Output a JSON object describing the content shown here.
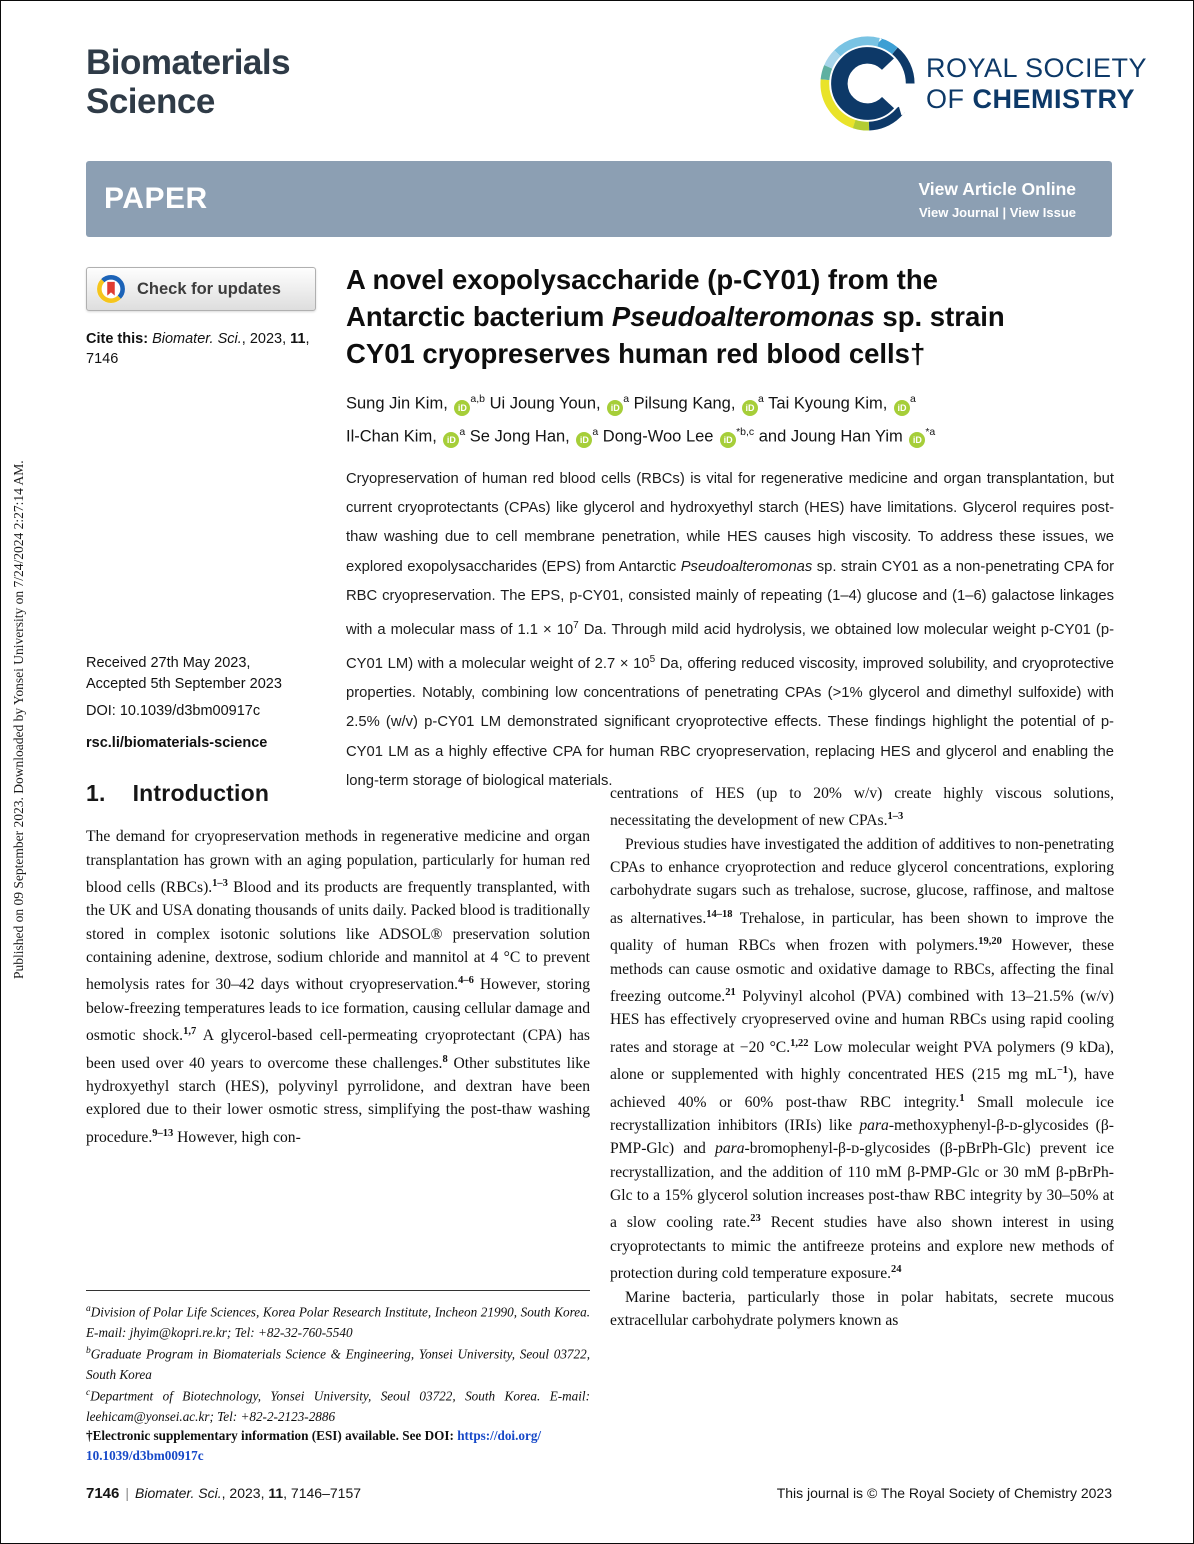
{
  "theme": {
    "banner_bg": "#8C9FB3",
    "journal_navy": "#2F3B47",
    "rsc_navy": "#0D3968",
    "orcid_green": "#A6CE39",
    "link_blue": "#1648C8",
    "crossmark_red": "#E03C31",
    "crossmark_yellow": "#F5C51D",
    "crossmark_blue": "#1C63B7"
  },
  "icons": {
    "rsc_logo": "c-swoosh-icon",
    "crossmark": "bookmark-circle-icon",
    "orcid": "iD"
  },
  "side_note": "Published on 09 September 2023. Downloaded by Yonsei University on 7/24/2024 2:27:14 AM.",
  "header": {
    "journal_html": "Biomaterials<br>Science",
    "logo_line1": "ROYAL SOCIETY",
    "logo_line2_html": "OF <span class='bold'>CHEMISTRY</span>"
  },
  "banner": {
    "kind": "PAPER",
    "view_article": "View Article Online",
    "view_links": "View Journal | View Issue"
  },
  "meta": {
    "check_updates": "Check for updates",
    "cite_html": "<b>Cite this:</b> <i>Biomater. Sci.</i>, 2023, <b>11</b>,<br>7146",
    "received_html": "Received 27th May 2023,<br>Accepted 5th September 2023",
    "doi": "DOI: 10.1039/d3bm00917c",
    "rsc_link": "rsc.li/biomaterials-science"
  },
  "article": {
    "title_html": "A novel exopolysaccharide (p-CY01) from the<br>Antarctic bacterium <i>Pseudoalteromonas</i> sp. strain<br>CY01 cryopreserves human red blood cells&dagger;",
    "authors_html": "Sung Jin Kim, <span class='orcid' data-name='orcid-icon' data-interactable='true'>iD</span><sup>a,b</sup> Ui Joung Youn, <span class='orcid' data-name='orcid-icon' data-interactable='true'>iD</span><sup>a</sup> Pilsung Kang, <span class='orcid' data-name='orcid-icon' data-interactable='true'>iD</span><sup>a</sup> Tai Kyoung Kim, <span class='orcid' data-name='orcid-icon' data-interactable='true'>iD</span><sup>a</sup><br>Il-Chan Kim, <span class='orcid' data-name='orcid-icon' data-interactable='true'>iD</span><sup>a</sup> Se Jong Han, <span class='orcid' data-name='orcid-icon' data-interactable='true'>iD</span><sup>a</sup> Dong-Woo Lee <span class='orcid' data-name='orcid-icon' data-interactable='true'>iD</span><sup>*b,c</sup> and Joung Han Yim <span class='orcid' data-name='orcid-icon' data-interactable='true'>iD</span><sup>*a</sup>",
    "abstract_html": "Cryopreservation of human red blood cells (RBCs) is vital for regenerative medicine and organ transplantation, but current cryoprotectants (CPAs) like glycerol and hydroxyethyl starch (HES) have limitations. Glycerol requires post-thaw washing due to cell membrane penetration, while HES causes high viscosity. To address these issues, we explored exopolysaccharides (EPS) from Antarctic <i>Pseudoalteromonas</i> sp. strain CY01 as a non-penetrating CPA for RBC cryopreservation. The EPS, p-CY01, consisted mainly of repeating (1–4) glucose and (1–6) galactose linkages with a molecular mass of 1.1 × 10<sup>7</sup> Da. Through mild acid hydrolysis, we obtained low molecular weight p-CY01 (p-CY01 LM) with a molecular weight of 2.7 × 10<sup>5</sup> Da, offering reduced viscosity, improved solubility, and cryoprotective properties. Notably, combining low concentrations of penetrating CPAs (&gt;1% glycerol and dimethyl sulfoxide) with 2.5% (w/v) p-CY01 LM demonstrated significant cryoprotective effects. These findings highlight the potential of p-CY01 LM as a highly effective CPA for human RBC cryopreservation, replacing HES and glycerol and enabling the long-term storage of biological materials."
  },
  "intro": {
    "number": "1.",
    "title": "Introduction",
    "col1_par_html": "The demand for cryopreservation methods in regenerative medicine and organ transplantation has grown with an aging population, particularly for human red blood cells (RBCs).<sup>1–3</sup> Blood and its products are frequently transplanted, with the UK and USA donating thousands of units daily. Packed blood is traditionally stored in complex isotonic solutions like ADSOL® preservation solution containing adenine, dextrose, sodium chloride and mannitol at 4 °C to prevent hemolysis rates for 30–42 days without cryopreservation.<sup>4–6</sup> However, storing below-freezing temperatures leads to ice formation, causing cellular damage and osmotic shock.<sup>1,7</sup> A glycerol-based cell-permeating cryoprotectant (CPA) has been used over 40 years to overcome these challenges.<sup>8</sup> Other substitutes like hydroxyethyl starch (HES), polyvinyl pyrrolidone, and dextran have been explored due to their lower osmotic stress, simplifying the post-thaw washing procedure.<sup>9–13</sup> However, high con-",
    "col2_paragraphs_html": [
      "centrations of HES (up to 20% w/v) create highly viscous solutions, necessitating the development of new CPAs.<sup>1–3</sup>",
      "Previous studies have investigated the addition of additives to non-penetrating CPAs to enhance cryoprotection and reduce glycerol concentrations, exploring carbohydrate sugars such as trehalose, sucrose, glucose, raffinose, and maltose as alternatives.<sup>14–18</sup> Trehalose, in particular, has been shown to improve the quality of human RBCs when frozen with polymers.<sup>19,20</sup> However, these methods can cause osmotic and oxidative damage to RBCs, affecting the final freezing outcome.<sup>21</sup> Polyvinyl alcohol (PVA) combined with 13–21.5% (w/v) HES has effectively cryopreserved ovine and human RBCs using rapid cooling rates and storage at −20 °C.<sup>1,22</sup> Low molecular weight PVA polymers (9 kDa), alone or supplemented with highly concentrated HES (215 mg mL<sup>−1</sup>), have achieved 40% or 60% post-thaw RBC integrity.<sup>1</sup> Small molecule ice recrystallization inhibitors (IRIs) like <i>para</i>-methoxyphenyl-β-ᴅ-glycosides (β-PMP-Glc) and <i>para</i>-bromophenyl-β-ᴅ-glycosides (β-pBrPh-Glc) prevent ice recrystallization, and the addition of 110 mM β-PMP-Glc or 30 mM β-pBrPh-Glc to a 15% glycerol solution increases post-thaw RBC integrity by 30–50% at a slow cooling rate.<sup>23</sup> Recent studies have also shown interest in using cryoprotectants to mimic the antifreeze proteins and explore new methods of protection during cold temperature exposure.<sup>24</sup>",
      "Marine bacteria, particularly those in polar habitats, secrete mucous extracellular carbohydrate polymers known as"
    ]
  },
  "footnotes_html": [
    "<sup>a</sup>Division of Polar Life Sciences, Korea Polar Research Institute, Incheon 21990, South Korea. E-mail: jhyim@kopri.re.kr; Tel: +82-32-760-5540",
    "<sup>b</sup>Graduate Program in Biomaterials Science &amp; Engineering, Yonsei University, Seoul 03722, South Korea",
    "<sup>c</sup>Department of Biotechnology, Yonsei University, Seoul 03722, South Korea. E-mail: leehicam@yonsei.ac.kr; Tel: +82-2-2123-2886",
    "†Electronic supplementary information (ESI) available. See DOI: <a class='doi-link' data-name='esi-doi-link' data-interactable='true'>https://doi.org/</a><br><a class='doi-link' data-name='esi-doi-link-2' data-interactable='true'>10.1039/d3bm00917c</a>"
  ],
  "footer": {
    "left_html": "<span class='pg'>7146</span><span class='sep'>|</span><i>Biomater. Sci.</i>, 2023, <b>11</b>, 7146–7157",
    "right": "This journal is © The Royal Society of Chemistry 2023"
  }
}
